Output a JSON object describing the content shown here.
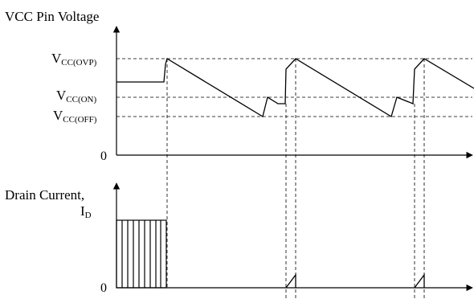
{
  "top_panel": {
    "title": "VCC Pin Voltage",
    "level_labels": {
      "ovp": {
        "main": "V",
        "sub": "CC(OVP)"
      },
      "on": {
        "main": "V",
        "sub": "CC(ON)"
      },
      "off": {
        "main": "V",
        "sub": "CC(OFF)"
      }
    },
    "zero_label": "0"
  },
  "bottom_panel": {
    "title": "Drain Current,",
    "current_label": {
      "main": "I",
      "sub": "D"
    },
    "zero_label": "0"
  },
  "colors": {
    "ink": "#000000",
    "background": "#ffffff"
  }
}
